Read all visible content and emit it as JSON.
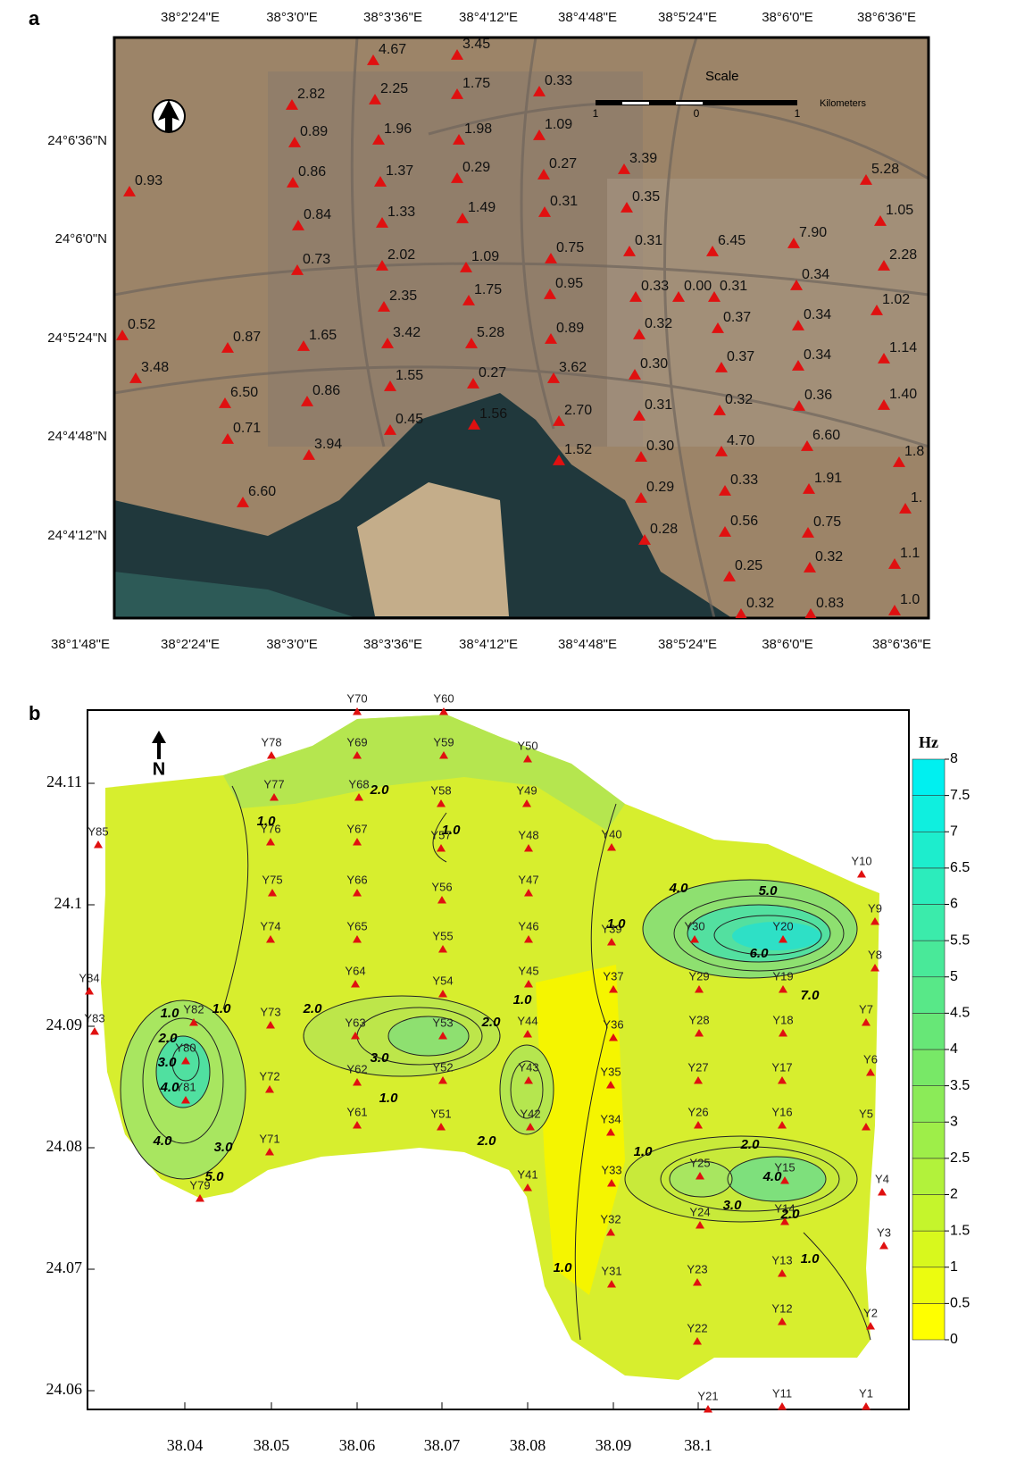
{
  "panel_a": {
    "label": "a",
    "top_ticks": [
      "38°2'24\"E",
      "38°3'0\"E",
      "38°3'36\"E",
      "38°4'12\"E",
      "38°4'48\"E",
      "38°5'24\"E",
      "38°6'0\"E",
      "38°6'36\"E"
    ],
    "bottom_ticks": [
      "38°1'48\"E",
      "38°2'24\"E",
      "38°3'0\"E",
      "38°3'36\"E",
      "38°4'12\"E",
      "38°4'48\"E",
      "38°5'24\"E",
      "38°6'0\"E",
      "38°6'36\"E"
    ],
    "left_ticks": [
      "24°6'36\"N",
      "24°6'0\"N",
      "24°5'24\"N",
      "24°4'48\"N",
      "24°4'12\"N"
    ],
    "scale": {
      "title": "Scale",
      "ticks": [
        "1",
        "0",
        "1"
      ],
      "unit": "Kilometers"
    },
    "points": [
      "4.67",
      "3.45",
      "0.33",
      "2.82",
      "2.25",
      "1.75",
      "0.89",
      "1.96",
      "1.98",
      "1.09",
      "0.93",
      "0.86",
      "1.37",
      "0.29",
      "0.27",
      "3.39",
      "5.28",
      "0.35",
      "0.84",
      "1.33",
      "1.49",
      "0.31",
      "1.05",
      "0.31",
      "6.45",
      "7.90",
      "0.75",
      "0.73",
      "2.02",
      "1.09",
      "2.28",
      "0.95",
      "0.33",
      "0.00",
      "0.31",
      "0.34",
      "1.75",
      "2.35",
      "1.02",
      "0.52",
      "0.87",
      "1.65",
      "3.42",
      "5.28",
      "0.89",
      "0.32",
      "0.37",
      "0.34",
      "1.14",
      "3.48",
      "1.55",
      "0.27",
      "3.62",
      "0.30",
      "0.37",
      "0.34",
      "6.50",
      "0.86",
      "1.56",
      "2.70",
      "0.31",
      "0.32",
      "0.36",
      "1.40",
      "0.71",
      "0.45",
      "3.94",
      "1.52",
      "0.30",
      "4.70",
      "6.60",
      "1.8",
      "6.60",
      "0.29",
      "0.33",
      "1.91",
      "1.",
      "0.28",
      "0.56",
      "0.75",
      "1.1",
      "0.25",
      "0.32",
      "0.32",
      "0.83",
      "1.0"
    ]
  },
  "panel_b": {
    "label": "b",
    "x_ticks": [
      38.04,
      38.05,
      38.06,
      38.07,
      38.08,
      38.09,
      38.1
    ],
    "y_ticks": [
      24.11,
      24.1,
      24.09,
      24.08,
      24.07,
      24.06
    ],
    "colorbar": {
      "title": "Hz",
      "ticks": [
        0,
        0.5,
        1,
        1.5,
        2,
        2.5,
        3,
        3.5,
        4,
        4.5,
        5,
        5.5,
        6,
        6.5,
        7,
        7.5,
        8
      ]
    },
    "stations": [
      "Y78",
      "Y77",
      "Y76",
      "Y75",
      "Y74",
      "Y73",
      "Y72",
      "Y71",
      "Y70",
      "Y69",
      "Y68",
      "Y67",
      "Y66",
      "Y65",
      "Y64",
      "Y63",
      "Y62",
      "Y61",
      "Y60",
      "Y59",
      "Y58",
      "Y57",
      "Y56",
      "Y55",
      "Y54",
      "Y53",
      "Y52",
      "Y51",
      "Y50",
      "Y49",
      "Y48",
      "Y47",
      "Y46",
      "Y45",
      "Y44",
      "Y43",
      "Y42",
      "Y41",
      "Y40",
      "Y39",
      "Y37",
      "Y36",
      "Y35",
      "Y34",
      "Y33",
      "Y32",
      "Y31",
      "Y30",
      "Y29",
      "Y28",
      "Y27",
      "Y26",
      "Y25",
      "Y24",
      "Y23",
      "Y22",
      "Y21",
      "Y20",
      "Y19",
      "Y18",
      "Y17",
      "Y16",
      "Y15",
      "Y14",
      "Y13",
      "Y12",
      "Y11",
      "Y10",
      "Y9",
      "Y8",
      "Y7",
      "Y6",
      "Y5",
      "Y4",
      "Y3",
      "Y2",
      "Y1",
      "Y85",
      "Y84",
      "Y83",
      "Y82",
      "Y81",
      "Y80",
      "Y79"
    ],
    "contour_labels": [
      "1.0",
      "1.0",
      "2.0",
      "3.0",
      "4.0",
      "4.0",
      "3.0",
      "5.0",
      "2.0",
      "3.0",
      "1.0",
      "2.0",
      "1.0",
      "2.0",
      "1.0",
      "1.0",
      "2.0",
      "1.0",
      "4.0",
      "5.0",
      "6.0",
      "1.0",
      "2.0",
      "3.0",
      "2.0",
      "1.0",
      "4.0",
      "1.0",
      "7.0"
    ]
  }
}
